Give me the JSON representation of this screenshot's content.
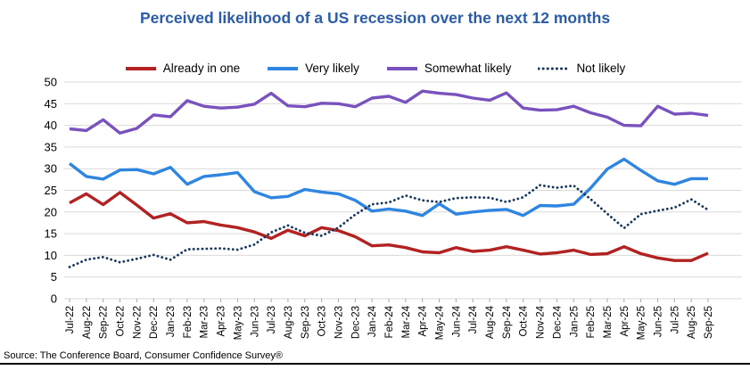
{
  "title": "Perceived likelihood of a US recession over the next 12 months",
  "title_color": "#2A5CAA",
  "footer": {
    "source_text": "Source: The Conference Board, Consumer Confidence Survey®"
  },
  "chart_data": {
    "type": "line",
    "title": "Perceived likelihood of a US recession over the next 12 months",
    "xlabel": "",
    "ylabel": "",
    "ylim": [
      0,
      50
    ],
    "ytick_step": 5,
    "grid": "horizontal",
    "grid_color": "#D9D9D9",
    "tick_color": "#A6A6A6",
    "label_color": "#000000",
    "legend_position": "top",
    "categories": [
      "Jul-22",
      "Aug-22",
      "Sep-22",
      "Oct-22",
      "Nov-22",
      "Dec-22",
      "Jan-23",
      "Feb-23",
      "Mar-23",
      "Apr-23",
      "May-23",
      "Jun-23",
      "Jul-23",
      "Aug-23",
      "Sep-23",
      "Oct-23",
      "Nov-23",
      "Dec-23",
      "Jan-24",
      "Feb-24",
      "Mar-24",
      "Apr-24",
      "May-24",
      "Jun-24",
      "Jul-24",
      "Aug-24",
      "Sep-24",
      "Oct-24",
      "Nov-24",
      "Dec-24",
      "Jan-25",
      "Feb-25",
      "Mar-25",
      "Apr-25",
      "May-25",
      "Jun-25",
      "Jul-25",
      "Aug-25",
      "Sep-25"
    ],
    "series": [
      {
        "name": "Already in one",
        "color": "#B22222",
        "style": "solid",
        "width": 3.4,
        "values": [
          22.1,
          24.2,
          21.7,
          24.5,
          21.6,
          18.6,
          19.6,
          17.5,
          17.8,
          17.0,
          16.4,
          15.4,
          13.9,
          15.8,
          14.5,
          16.4,
          15.7,
          14.3,
          12.2,
          12.4,
          11.8,
          10.8,
          10.6,
          11.8,
          10.9,
          11.2,
          12.0,
          11.2,
          10.3,
          10.6,
          11.2,
          10.2,
          10.4,
          12.0,
          10.4,
          9.4,
          8.8,
          8.8,
          10.5
        ]
      },
      {
        "name": "Very likely",
        "color": "#2E86E0",
        "style": "solid",
        "width": 3.4,
        "values": [
          31.2,
          28.2,
          27.6,
          29.7,
          29.8,
          28.8,
          30.3,
          26.4,
          28.2,
          28.6,
          29.1,
          24.7,
          23.3,
          23.6,
          25.2,
          24.6,
          24.2,
          22.7,
          20.2,
          20.7,
          20.2,
          19.2,
          21.9,
          19.5,
          20.0,
          20.4,
          20.6,
          19.2,
          21.5,
          21.4,
          21.8,
          25.5,
          29.9,
          32.2,
          29.6,
          27.2,
          26.4,
          27.7,
          27.7
        ]
      },
      {
        "name": "Somewhat likely",
        "color": "#7A52BD",
        "style": "solid",
        "width": 3.4,
        "values": [
          39.2,
          38.8,
          41.3,
          38.2,
          39.3,
          42.4,
          42.0,
          45.7,
          44.4,
          44.0,
          44.2,
          44.9,
          47.4,
          44.5,
          44.3,
          45.1,
          45.0,
          44.3,
          46.3,
          46.7,
          45.3,
          47.9,
          47.4,
          47.1,
          46.3,
          45.8,
          47.5,
          44.0,
          43.5,
          43.6,
          44.4,
          42.9,
          41.9,
          40.0,
          39.9,
          44.4,
          42.6,
          42.8,
          42.3
        ]
      },
      {
        "name": "Not likely",
        "color": "#17365D",
        "style": "dotted",
        "width": 2.8,
        "values": [
          7.3,
          9.0,
          9.6,
          8.4,
          9.2,
          10.1,
          9.0,
          11.4,
          11.5,
          11.6,
          11.3,
          12.5,
          15.3,
          16.9,
          15.2,
          14.5,
          16.4,
          19.4,
          21.8,
          22.2,
          23.8,
          22.7,
          22.3,
          23.2,
          23.4,
          23.3,
          22.3,
          23.4,
          26.2,
          25.6,
          26.1,
          23.0,
          19.6,
          16.3,
          19.5,
          20.3,
          21.0,
          22.9,
          20.5
        ]
      }
    ]
  }
}
